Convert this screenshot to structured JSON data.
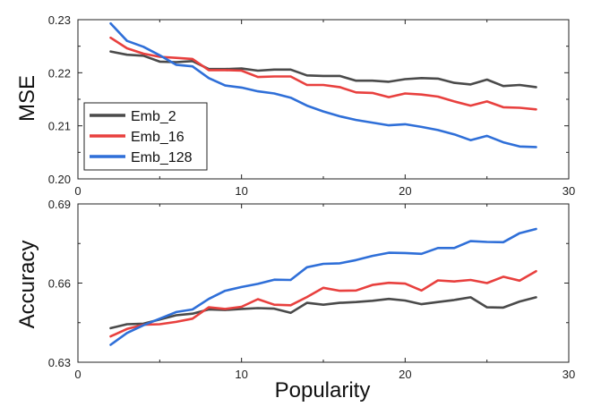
{
  "chart_data": [
    {
      "type": "line",
      "title": "",
      "xlabel": "",
      "ylabel": "MSE",
      "xlim": [
        0,
        30
      ],
      "ylim": [
        0.2,
        0.23
      ],
      "xticks": [
        0,
        10,
        20,
        30
      ],
      "yticks": [
        0.2,
        0.21,
        0.22,
        0.23
      ],
      "ytick_labels": [
        "0.20",
        "0.21",
        "0.22",
        "0.23"
      ],
      "legend": "bottom-left",
      "x": [
        2,
        3,
        4,
        5,
        6,
        7,
        8,
        9,
        10,
        11,
        12,
        13,
        14,
        15,
        16,
        17,
        18,
        19,
        20,
        21,
        22,
        23,
        24,
        25,
        26,
        27,
        28
      ],
      "series": [
        {
          "name": "Emb_2",
          "color": "#4a4a4a",
          "values": [
            0.224,
            0.2234,
            0.2232,
            0.2221,
            0.222,
            0.2222,
            0.2207,
            0.2207,
            0.2208,
            0.2204,
            0.2206,
            0.2206,
            0.2195,
            0.2194,
            0.2194,
            0.2185,
            0.2185,
            0.2183,
            0.2188,
            0.219,
            0.2189,
            0.2181,
            0.2178,
            0.2187,
            0.2175,
            0.2177,
            0.2173
          ]
        },
        {
          "name": "Emb_16",
          "color": "#e8403e",
          "values": [
            0.2266,
            0.2246,
            0.2236,
            0.223,
            0.2228,
            0.2226,
            0.2205,
            0.2205,
            0.2204,
            0.2192,
            0.2193,
            0.2193,
            0.2177,
            0.2177,
            0.2173,
            0.2163,
            0.2162,
            0.2154,
            0.2161,
            0.2159,
            0.2155,
            0.2146,
            0.2138,
            0.2146,
            0.2135,
            0.2134,
            0.2131
          ]
        },
        {
          "name": "Emb_128",
          "color": "#2f6fd8",
          "values": [
            0.2293,
            0.226,
            0.2249,
            0.2233,
            0.2215,
            0.2212,
            0.219,
            0.2176,
            0.2172,
            0.2165,
            0.2161,
            0.2153,
            0.2138,
            0.2127,
            0.2118,
            0.2111,
            0.2106,
            0.2101,
            0.2103,
            0.2098,
            0.2092,
            0.2084,
            0.2073,
            0.2081,
            0.2069,
            0.2061,
            0.206
          ]
        }
      ]
    },
    {
      "type": "line",
      "title": "",
      "xlabel": "Popularity",
      "ylabel": "Accuracy",
      "xlim": [
        0,
        30
      ],
      "ylim": [
        0.63,
        0.69
      ],
      "xticks": [
        0,
        10,
        20,
        30
      ],
      "yticks": [
        0.63,
        0.66,
        0.69
      ],
      "ytick_labels": [
        "0.63",
        "0.66",
        "0.69"
      ],
      "x": [
        2,
        3,
        4,
        5,
        6,
        7,
        8,
        9,
        10,
        11,
        12,
        13,
        14,
        15,
        16,
        17,
        18,
        19,
        20,
        21,
        22,
        23,
        24,
        25,
        26,
        27,
        28
      ],
      "series": [
        {
          "name": "Emb_2",
          "color": "#4a4a4a",
          "values": [
            0.6429,
            0.6444,
            0.6446,
            0.6462,
            0.6478,
            0.6484,
            0.65,
            0.6498,
            0.6502,
            0.6505,
            0.6503,
            0.6487,
            0.6525,
            0.6518,
            0.6525,
            0.6528,
            0.6533,
            0.654,
            0.6534,
            0.652,
            0.6528,
            0.6536,
            0.6546,
            0.6508,
            0.6507,
            0.653,
            0.6546
          ]
        },
        {
          "name": "Emb_16",
          "color": "#e8403e",
          "values": [
            0.6398,
            0.6426,
            0.6442,
            0.6444,
            0.6453,
            0.6465,
            0.6508,
            0.6502,
            0.651,
            0.6539,
            0.6518,
            0.6516,
            0.6547,
            0.6582,
            0.6571,
            0.6572,
            0.6593,
            0.6601,
            0.6598,
            0.6572,
            0.661,
            0.6606,
            0.6612,
            0.66,
            0.6624,
            0.6609,
            0.6645
          ]
        },
        {
          "name": "Emb_128",
          "color": "#2f6fd8",
          "values": [
            0.6366,
            0.6411,
            0.644,
            0.6465,
            0.649,
            0.65,
            0.654,
            0.6571,
            0.6585,
            0.6597,
            0.6613,
            0.6612,
            0.666,
            0.6673,
            0.6675,
            0.6687,
            0.6703,
            0.6715,
            0.6714,
            0.6711,
            0.6733,
            0.6733,
            0.6759,
            0.6756,
            0.6755,
            0.6789,
            0.6805
          ]
        }
      ]
    }
  ]
}
